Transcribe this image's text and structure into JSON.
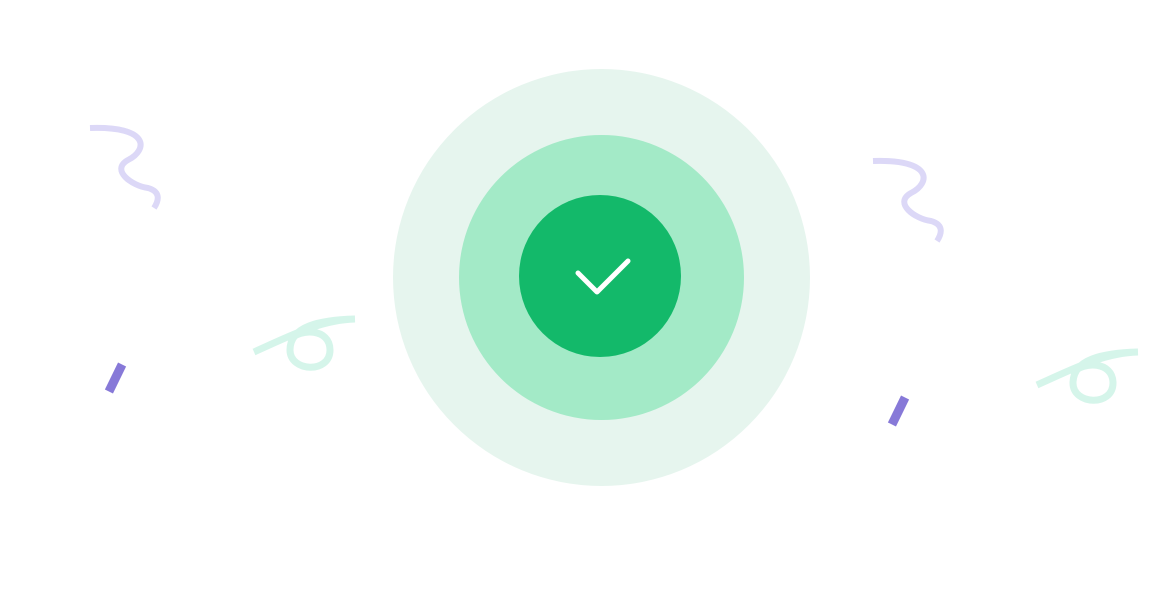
{
  "colors": {
    "background": "#ffffff",
    "ring_outer": "#e6f5ee",
    "ring_middle": "#a3eac7",
    "ring_inner": "#13b96a",
    "check_stroke": "#ffffff",
    "squiggle_purple": "#dcd8f7",
    "confetti_purple": "#8779d8",
    "curl_mint": "#d5f5ea"
  },
  "icons": {
    "success": "check-icon",
    "confetti": [
      "squiggle-icon",
      "confetti-bar-icon",
      "curl-icon"
    ]
  }
}
